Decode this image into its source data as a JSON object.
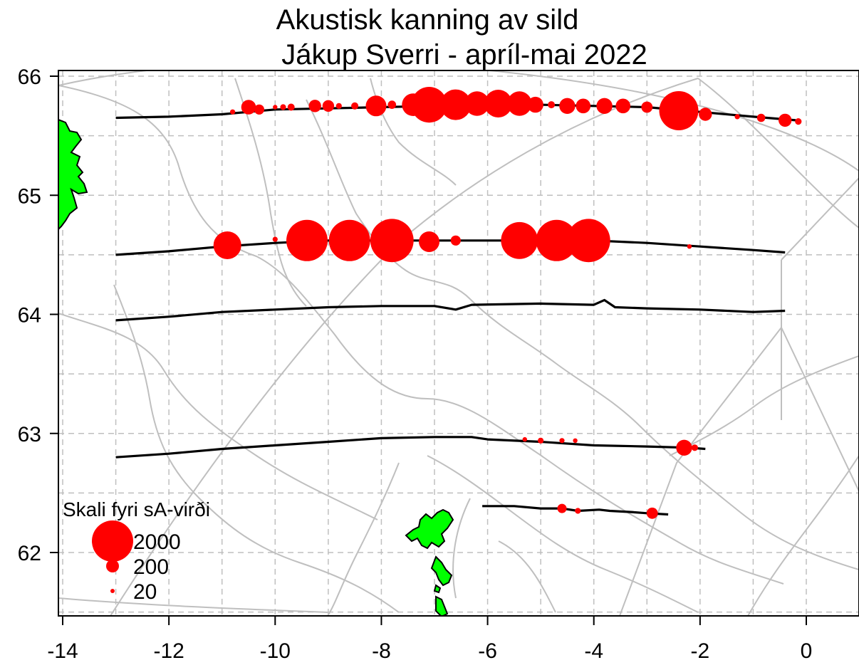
{
  "title": {
    "line1": "Akustisk kanning av sild",
    "line2": "Jákup Sverri - apríl-mai 2022"
  },
  "axes": {
    "x_ticks": [
      -14,
      -12,
      -10,
      -8,
      -6,
      -4,
      -2,
      0
    ],
    "y_ticks": [
      62,
      63,
      64,
      65,
      66
    ],
    "xlim": [
      -14.03,
      1.0
    ],
    "ylim": [
      61.48,
      66.03
    ],
    "grid": true
  },
  "legend": {
    "title": "Skali fyri sA-virði",
    "entries": [
      {
        "label": "2000",
        "value": 2000
      },
      {
        "label": "200",
        "value": 200
      },
      {
        "label": "20",
        "value": 20
      }
    ],
    "placement": "bottom-left"
  },
  "colors": {
    "bubble": "#ff0000",
    "land": "#00ff00",
    "track": "#000000",
    "contour": "#bfbfbf",
    "grid": "#bfbfbf"
  },
  "chart_data": {
    "type": "scatter",
    "series_kind": "bubble",
    "tracks": [
      {
        "y_lat": 65.7,
        "points": [
          [
            -13,
            65.65
          ],
          [
            -12,
            65.66
          ],
          [
            -11,
            65.68
          ],
          [
            -10,
            65.72
          ],
          [
            -9,
            65.73
          ],
          [
            -8,
            65.74
          ],
          [
            -7,
            65.75
          ],
          [
            -6,
            65.76
          ],
          [
            -5,
            65.76
          ],
          [
            -4,
            65.75
          ],
          [
            -3,
            65.74
          ],
          [
            -2,
            65.7
          ],
          [
            -1,
            65.66
          ],
          [
            -0.2,
            65.63
          ]
        ]
      },
      {
        "y_lat": 64.55,
        "points": [
          [
            -13,
            64.5
          ],
          [
            -12,
            64.53
          ],
          [
            -11,
            64.57
          ],
          [
            -10,
            64.6
          ],
          [
            -9,
            64.62
          ],
          [
            -8,
            64.62
          ],
          [
            -7,
            64.62
          ],
          [
            -6,
            64.62
          ],
          [
            -5,
            64.62
          ],
          [
            -4,
            64.62
          ],
          [
            -3,
            64.6
          ],
          [
            -2,
            64.57
          ],
          [
            -1,
            64.54
          ],
          [
            -0.4,
            64.52
          ]
        ]
      },
      {
        "y_lat": 64.0,
        "points": [
          [
            -13,
            63.95
          ],
          [
            -12,
            63.98
          ],
          [
            -11,
            64.02
          ],
          [
            -10,
            64.04
          ],
          [
            -9,
            64.06
          ],
          [
            -8,
            64.07
          ],
          [
            -7,
            64.07
          ],
          [
            -6.6,
            64.04
          ],
          [
            -6.3,
            64.08
          ],
          [
            -5,
            64.09
          ],
          [
            -4,
            64.08
          ],
          [
            -3.8,
            64.12
          ],
          [
            -3.6,
            64.06
          ],
          [
            -3,
            64.05
          ],
          [
            -2,
            64.04
          ],
          [
            -1,
            64.02
          ],
          [
            -0.4,
            64.03
          ]
        ]
      },
      {
        "y_lat": 62.9,
        "points": [
          [
            -13,
            62.8
          ],
          [
            -12,
            62.83
          ],
          [
            -11,
            62.87
          ],
          [
            -10,
            62.9
          ],
          [
            -9,
            62.93
          ],
          [
            -8,
            62.96
          ],
          [
            -7,
            62.97
          ],
          [
            -6.3,
            62.97
          ],
          [
            -6,
            62.95
          ],
          [
            -5,
            62.93
          ],
          [
            -4,
            62.9
          ],
          [
            -3,
            62.89
          ],
          [
            -2.2,
            62.88
          ],
          [
            -1.9,
            62.87
          ]
        ]
      },
      {
        "y_lat": 62.35,
        "points": [
          [
            -6.1,
            62.39
          ],
          [
            -5.5,
            62.39
          ],
          [
            -5,
            62.37
          ],
          [
            -4.6,
            62.37
          ],
          [
            -4.3,
            62.35
          ],
          [
            -3.9,
            62.36
          ],
          [
            -3.7,
            62.35
          ],
          [
            -3.3,
            62.34
          ],
          [
            -3,
            62.33
          ],
          [
            -2.6,
            62.32
          ]
        ]
      }
    ],
    "bubbles": [
      {
        "lon": -10.8,
        "lat": 65.7,
        "sA": 30
      },
      {
        "lon": -10.5,
        "lat": 65.74,
        "sA": 250
      },
      {
        "lon": -10.3,
        "lat": 65.72,
        "sA": 120
      },
      {
        "lon": -10.0,
        "lat": 65.74,
        "sA": 25
      },
      {
        "lon": -9.85,
        "lat": 65.74,
        "sA": 40
      },
      {
        "lon": -9.7,
        "lat": 65.74,
        "sA": 60
      },
      {
        "lon": -9.25,
        "lat": 65.75,
        "sA": 180
      },
      {
        "lon": -9.0,
        "lat": 65.75,
        "sA": 160
      },
      {
        "lon": -8.8,
        "lat": 65.75,
        "sA": 40
      },
      {
        "lon": -8.5,
        "lat": 65.75,
        "sA": 60
      },
      {
        "lon": -8.1,
        "lat": 65.75,
        "sA": 500
      },
      {
        "lon": -7.8,
        "lat": 65.76,
        "sA": 80
      },
      {
        "lon": -7.4,
        "lat": 65.76,
        "sA": 600
      },
      {
        "lon": -7.1,
        "lat": 65.76,
        "sA": 1500
      },
      {
        "lon": -6.6,
        "lat": 65.76,
        "sA": 1100
      },
      {
        "lon": -6.2,
        "lat": 65.77,
        "sA": 700
      },
      {
        "lon": -5.8,
        "lat": 65.77,
        "sA": 900
      },
      {
        "lon": -5.4,
        "lat": 65.77,
        "sA": 700
      },
      {
        "lon": -5.1,
        "lat": 65.76,
        "sA": 300
      },
      {
        "lon": -4.8,
        "lat": 65.76,
        "sA": 60
      },
      {
        "lon": -4.5,
        "lat": 65.75,
        "sA": 300
      },
      {
        "lon": -4.2,
        "lat": 65.75,
        "sA": 250
      },
      {
        "lon": -3.8,
        "lat": 65.75,
        "sA": 300
      },
      {
        "lon": -3.45,
        "lat": 65.75,
        "sA": 250
      },
      {
        "lon": -3.0,
        "lat": 65.74,
        "sA": 150
      },
      {
        "lon": -2.4,
        "lat": 65.71,
        "sA": 1800
      },
      {
        "lon": -1.9,
        "lat": 65.68,
        "sA": 200
      },
      {
        "lon": -1.3,
        "lat": 65.66,
        "sA": 30
      },
      {
        "lon": -0.85,
        "lat": 65.65,
        "sA": 80
      },
      {
        "lon": -0.4,
        "lat": 65.63,
        "sA": 200
      },
      {
        "lon": -0.15,
        "lat": 65.62,
        "sA": 50
      },
      {
        "lon": -10.9,
        "lat": 64.58,
        "sA": 900
      },
      {
        "lon": -10.0,
        "lat": 64.63,
        "sA": 30
      },
      {
        "lon": -9.4,
        "lat": 64.62,
        "sA": 2000
      },
      {
        "lon": -8.6,
        "lat": 64.62,
        "sA": 2000
      },
      {
        "lon": -7.8,
        "lat": 64.62,
        "sA": 2200
      },
      {
        "lon": -7.1,
        "lat": 64.61,
        "sA": 500
      },
      {
        "lon": -6.6,
        "lat": 64.62,
        "sA": 120
      },
      {
        "lon": -5.4,
        "lat": 64.62,
        "sA": 1600
      },
      {
        "lon": -4.7,
        "lat": 64.62,
        "sA": 2000
      },
      {
        "lon": -4.1,
        "lat": 64.62,
        "sA": 2200
      },
      {
        "lon": -2.2,
        "lat": 64.57,
        "sA": 25
      },
      {
        "lon": -5.3,
        "lat": 62.95,
        "sA": 25
      },
      {
        "lon": -5.0,
        "lat": 62.94,
        "sA": 40
      },
      {
        "lon": -4.6,
        "lat": 62.94,
        "sA": 30
      },
      {
        "lon": -4.35,
        "lat": 62.94,
        "sA": 25
      },
      {
        "lon": -2.3,
        "lat": 62.88,
        "sA": 300
      },
      {
        "lon": -2.1,
        "lat": 62.88,
        "sA": 50
      },
      {
        "lon": -4.6,
        "lat": 62.37,
        "sA": 100
      },
      {
        "lon": -4.3,
        "lat": 62.35,
        "sA": 40
      },
      {
        "lon": -2.9,
        "lat": 62.33,
        "sA": 150
      }
    ]
  }
}
